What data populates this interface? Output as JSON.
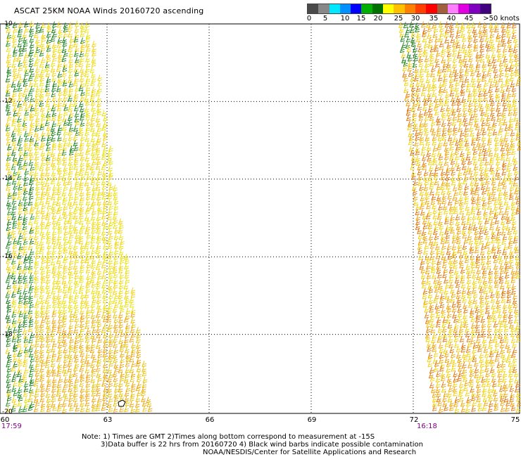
{
  "title": "ASCAT 25KM NOAA Winds 20160720 ascending",
  "legend": {
    "colors": [
      "#4a4a4a",
      "#888888",
      "#00e8ff",
      "#0090ff",
      "#0000ff",
      "#00b000",
      "#007000",
      "#ffff00",
      "#ffc000",
      "#ff8000",
      "#ff4000",
      "#ff0000",
      "#a06040",
      "#ff80ff",
      "#e000e0",
      "#8000c0",
      "#400080"
    ],
    "labels": [
      "0",
      "5",
      "10",
      "15",
      "20",
      "25",
      "30",
      "35",
      "40",
      "45",
      ">50 knots"
    ]
  },
  "x_ticks": [
    "60",
    "63",
    "66",
    "69",
    "72",
    "75"
  ],
  "y_ticks": [
    "-10",
    "-12",
    "-14",
    "-16",
    "-18",
    "-20"
  ],
  "times": {
    "left": "17:59",
    "right": "16:18"
  },
  "notes": {
    "line1": "Note: 1) Times are GMT 2)Times along bottom correspond to measurement at -15S",
    "line2": "3)Data buffer is 22 hrs from 20160720 4) Black wind barbs indicate possible contamination",
    "line3": "NOAA/NESDIS/Center for Satellite Applications and Research"
  },
  "map": {
    "lon_range": [
      60,
      75
    ],
    "lat_range": [
      -20,
      -10
    ],
    "swaths": [
      {
        "name": "west-swath",
        "lon_left_top": 60,
        "lon_right_top": 62.5,
        "lon_left_bottom": 60,
        "lon_right_bottom": 64.3,
        "dominant_speed_knots": "15-25"
      },
      {
        "name": "east-swath",
        "lon_left_top": 71.5,
        "lon_right_top": 75,
        "lon_left_bottom": 72.5,
        "lon_right_bottom": 75,
        "dominant_speed_knots": "20-30"
      }
    ]
  }
}
